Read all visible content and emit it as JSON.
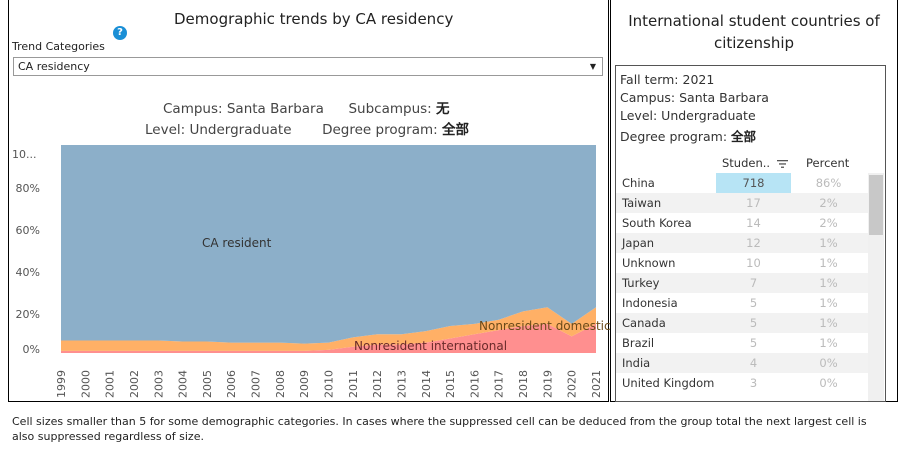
{
  "left": {
    "title": "Demographic trends by CA residency",
    "help_icon": "?",
    "trend_label": "Trend Categories",
    "select_value": "CA residency",
    "campus_label": "Campus:",
    "campus_value": "Santa Barbara",
    "subcampus_label": "Subcampus:",
    "subcampus_value": "无",
    "level_label": "Level:",
    "level_value": "Undergraduate",
    "degree_label": "Degree program:",
    "degree_value": "全部"
  },
  "chart_data": {
    "type": "area",
    "stacked": true,
    "x": [
      "1999",
      "2000",
      "2001",
      "2002",
      "2003",
      "2004",
      "2005",
      "2006",
      "2007",
      "2008",
      "2009",
      "2010",
      "2011",
      "2012",
      "2013",
      "2014",
      "2015",
      "2016",
      "2017",
      "2018",
      "2019",
      "2020",
      "2021"
    ],
    "yticks": [
      "0%",
      "20%",
      "40%",
      "60%",
      "80%",
      "10..."
    ],
    "ylim": [
      0,
      100
    ],
    "series": [
      {
        "name": "Nonresident international",
        "color": "#ff8f8f",
        "values": [
          1,
          1,
          1,
          1,
          1,
          1,
          1,
          1,
          1,
          1,
          1,
          1.5,
          3,
          4,
          4,
          5,
          7,
          9,
          11,
          13,
          14,
          8,
          14
        ]
      },
      {
        "name": "Nonresident domestic",
        "color": "#ffb066",
        "values": [
          5,
          5,
          5,
          5,
          5,
          4.5,
          4.5,
          4,
          4,
          4,
          3.5,
          3.5,
          4.5,
          5,
          5,
          5.5,
          6,
          5,
          5,
          7,
          8,
          6,
          8
        ]
      },
      {
        "name": "CA resident",
        "color": "#8cafc9",
        "values": [
          94,
          94,
          94,
          94,
          94,
          94.5,
          94.5,
          95,
          95,
          95,
          95.5,
          95,
          92.5,
          91,
          91,
          89.5,
          87,
          86,
          84,
          80,
          78,
          86,
          78
        ]
      }
    ],
    "annotations": [
      "CA resident",
      "Nonresident domestic",
      "Nonresident international"
    ]
  },
  "footnote": "Cell sizes smaller than 5 for some demographic categories. In cases where the suppressed cell can be deduced from the group total the next largest cell is also suppressed regardless of size.",
  "right": {
    "title": "International student countries of citizenship",
    "fall_term": "Fall term: 2021",
    "campus": "Campus: Santa Barbara",
    "level": "Level: Undergraduate",
    "degree_label": "Degree program: ",
    "degree_value": "全部",
    "col_students": "Studen..",
    "col_percent": "Percent",
    "sort_icon": "sort-descending-icon",
    "rows": [
      {
        "country": "China",
        "count": "718",
        "pct": "86%"
      },
      {
        "country": "Taiwan",
        "count": "17",
        "pct": "2%"
      },
      {
        "country": "South Korea",
        "count": "14",
        "pct": "2%"
      },
      {
        "country": "Japan",
        "count": "12",
        "pct": "1%"
      },
      {
        "country": "Unknown",
        "count": "10",
        "pct": "1%"
      },
      {
        "country": "Turkey",
        "count": "7",
        "pct": "1%"
      },
      {
        "country": "Indonesia",
        "count": "5",
        "pct": "1%"
      },
      {
        "country": "Canada",
        "count": "5",
        "pct": "1%"
      },
      {
        "country": "Brazil",
        "count": "5",
        "pct": "1%"
      },
      {
        "country": "India",
        "count": "4",
        "pct": "0%"
      },
      {
        "country": "United Kingdom",
        "count": "3",
        "pct": "0%"
      }
    ]
  }
}
